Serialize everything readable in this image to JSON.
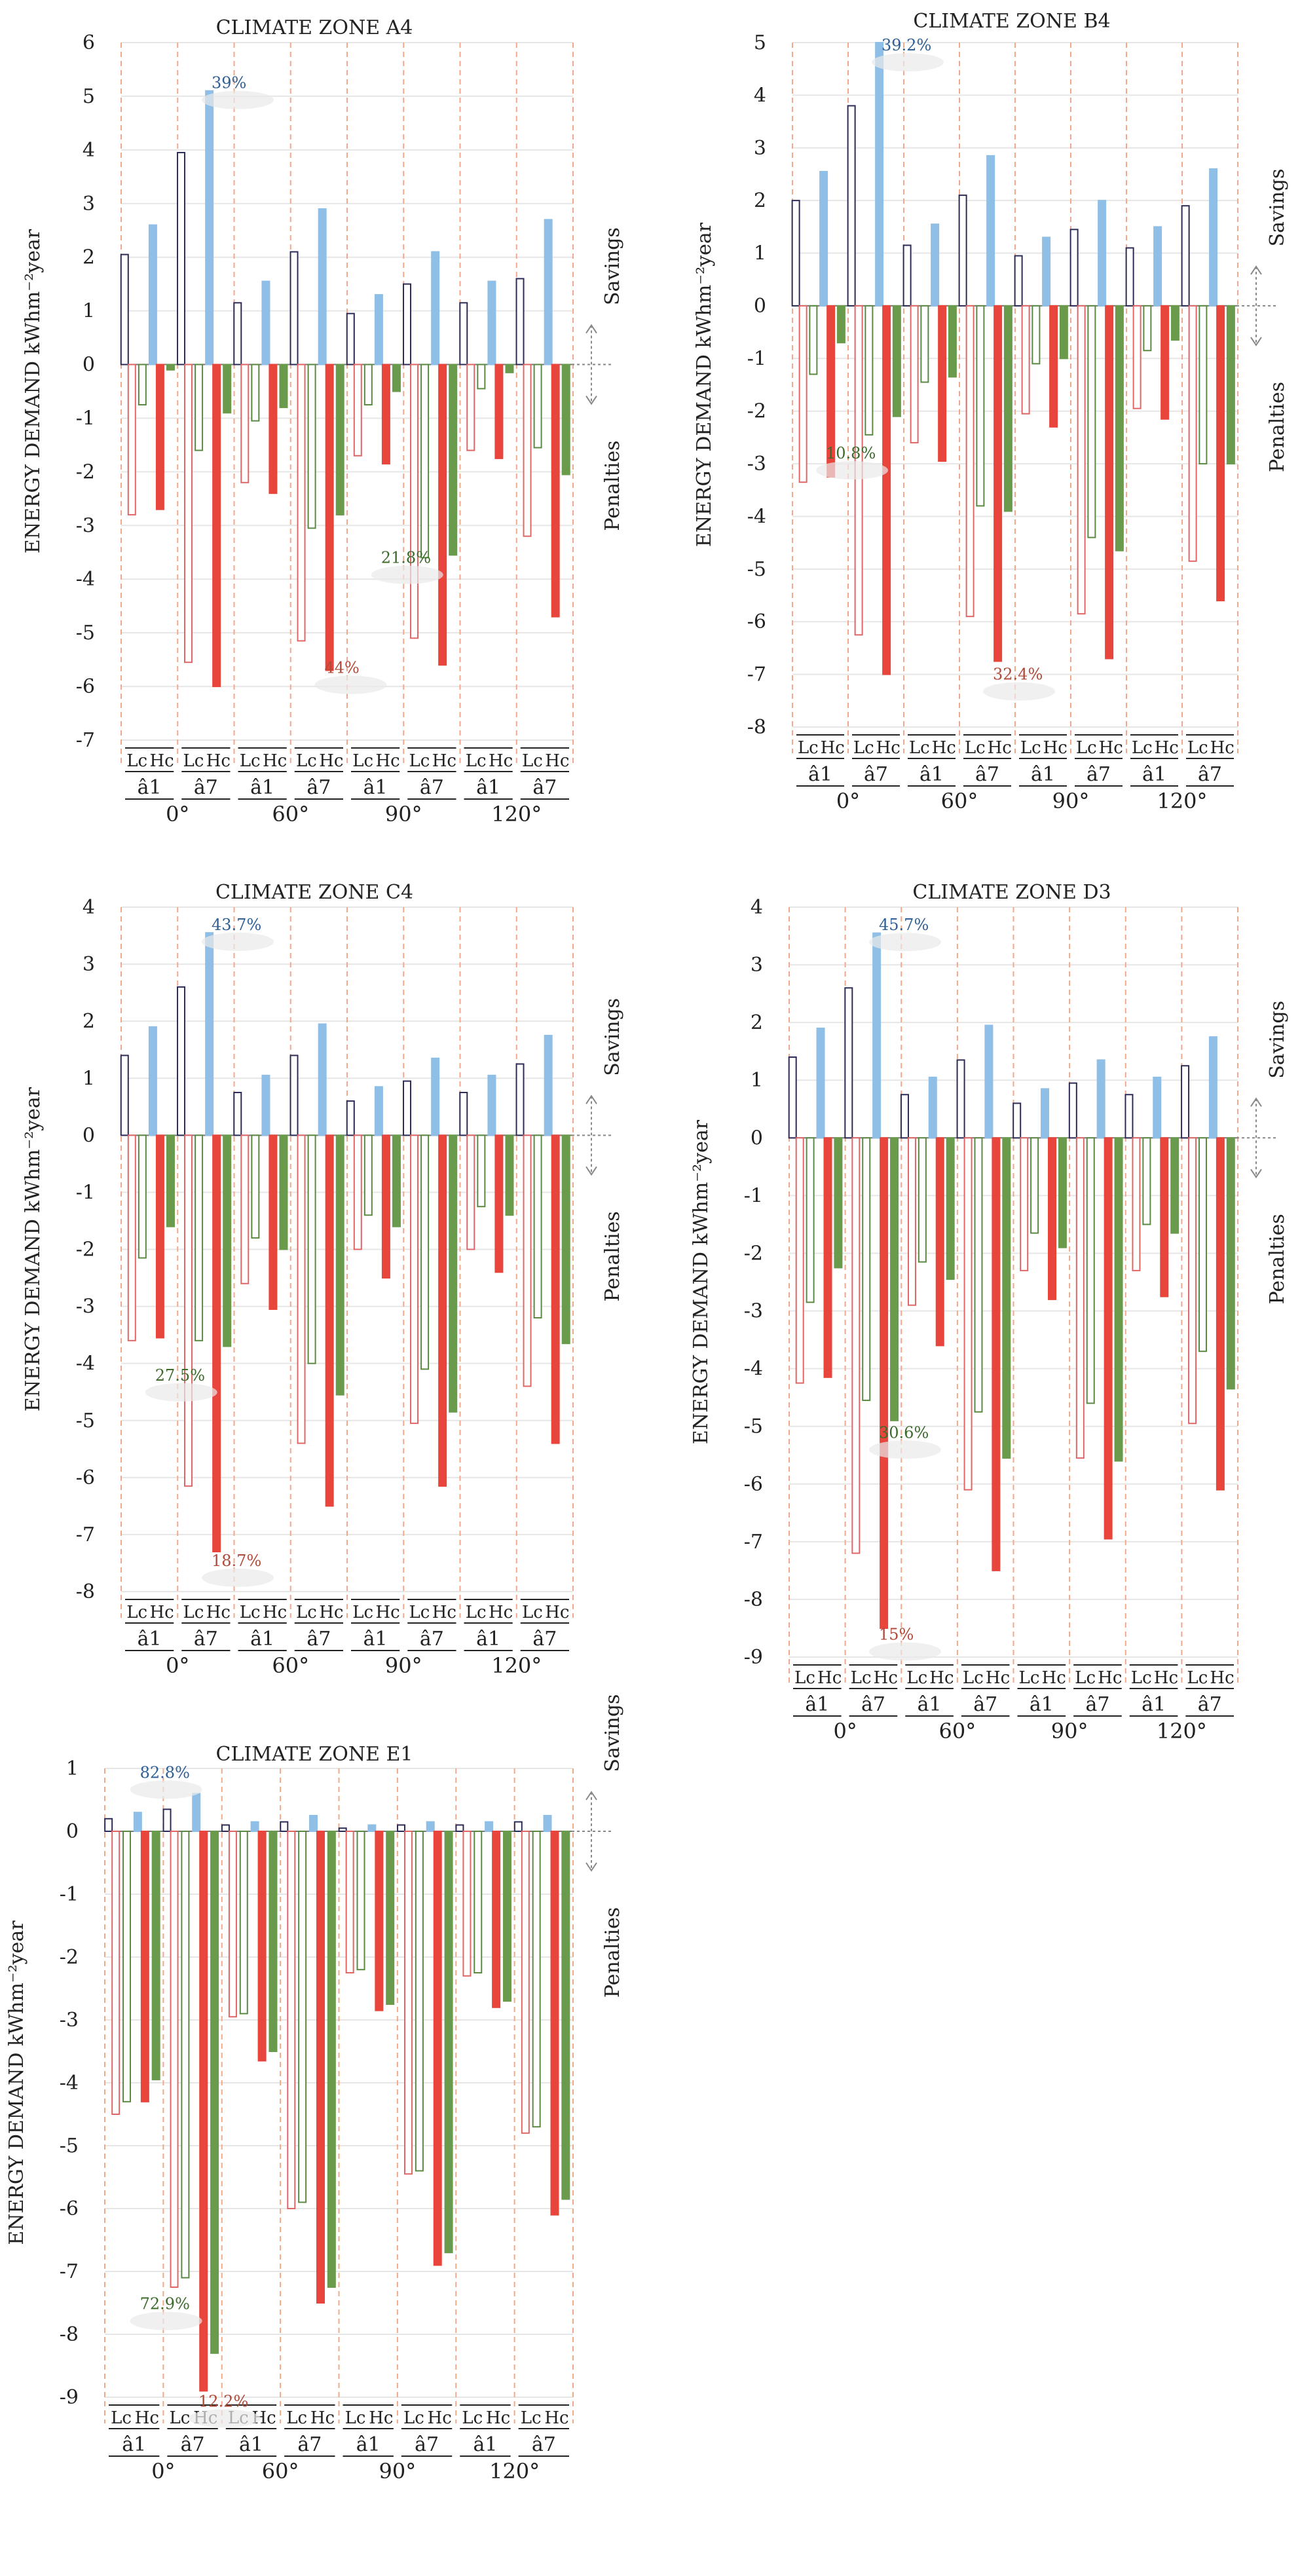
{
  "chart_data": [
    {
      "type": "bar",
      "title": "CLIMATE ZONE A4",
      "ylabel": "ENERGY DEMAND kWhm⁻²year",
      "ylim": [
        -7,
        6
      ],
      "yticks": [
        "6",
        "5",
        "4",
        "3",
        "2",
        "1",
        "0",
        "-1",
        "-2",
        "-3",
        "-4",
        "-5",
        "-6",
        "-7"
      ],
      "side_labels": {
        "top": "Savings",
        "bottom": "Penalties"
      },
      "x_levels": {
        "angles": [
          "0°",
          "60°",
          "90°",
          "120°"
        ],
        "sub": [
          "â1",
          "â7"
        ],
        "pair": [
          "Lc",
          "Hc"
        ]
      },
      "series": [
        {
          "name": "savings-1",
          "color": "#2b2b55",
          "filled": false,
          "values": [
            2.05,
            3.95,
            1.15,
            2.1,
            0.95,
            1.5,
            1.15,
            1.6
          ]
        },
        {
          "name": "savings-7",
          "color": "#8fbfe6",
          "filled": true,
          "values": [
            2.6,
            5.1,
            1.55,
            2.9,
            1.3,
            2.1,
            1.55,
            2.7
          ]
        },
        {
          "name": "penalty-1",
          "color": "#e06666",
          "filled": false,
          "values": [
            -2.8,
            -5.55,
            -2.2,
            -5.15,
            -1.7,
            -5.1,
            -1.6,
            -3.2
          ]
        },
        {
          "name": "penalty-1-green",
          "color": "#5a8a42",
          "filled": false,
          "values": [
            -0.75,
            -1.6,
            -1.05,
            -3.05,
            -0.75,
            -3.6,
            -0.45,
            -1.55
          ]
        },
        {
          "name": "penalty-7",
          "color": "#e8453c",
          "filled": true,
          "values": [
            -2.7,
            -6.0,
            -2.4,
            -5.7,
            -1.85,
            -5.6,
            -1.75,
            -4.7
          ]
        },
        {
          "name": "penalty-7-green",
          "color": "#6a9a4c",
          "filled": true,
          "values": [
            -0.1,
            -0.9,
            -0.8,
            -2.8,
            -0.5,
            -3.55,
            -0.15,
            -2.05
          ]
        }
      ],
      "annotations": [
        {
          "text": "39%",
          "color": "#2f5f94",
          "x_slot": 1,
          "y": 5.15
        },
        {
          "text": "21.8%",
          "color": "#3c6b2b",
          "x_slot": 4,
          "y": -3.7
        },
        {
          "text": "44%",
          "color": "#b04a3a",
          "x_slot": 3,
          "y": -5.75
        }
      ]
    },
    {
      "type": "bar",
      "title": "CLIMATE ZONE B4",
      "ylabel": "ENERGY DEMAND kWhm⁻²year",
      "ylim": [
        -8,
        5
      ],
      "yticks": [
        "5",
        "4",
        "3",
        "2",
        "1",
        "0",
        "-1",
        "-2",
        "-3",
        "-4",
        "-5",
        "-6",
        "-7",
        "-8"
      ],
      "side_labels": {
        "top": "Savings",
        "bottom": "Penalties"
      },
      "x_levels": {
        "angles": [
          "0°",
          "60°",
          "90°",
          "120°"
        ],
        "sub": [
          "â1",
          "â7"
        ],
        "pair": [
          "Lc",
          "Hc"
        ]
      },
      "series": [
        {
          "name": "savings-1",
          "color": "#2b2b55",
          "filled": false,
          "values": [
            2.0,
            3.8,
            1.15,
            2.1,
            0.95,
            1.45,
            1.1,
            1.9
          ]
        },
        {
          "name": "savings-7",
          "color": "#8fbfe6",
          "filled": true,
          "values": [
            2.55,
            5.0,
            1.55,
            2.85,
            1.3,
            2.0,
            1.5,
            2.6
          ]
        },
        {
          "name": "penalty-1",
          "color": "#e06666",
          "filled": false,
          "values": [
            -3.35,
            -6.25,
            -2.6,
            -5.9,
            -2.05,
            -5.85,
            -1.95,
            -4.85
          ]
        },
        {
          "name": "penalty-1-green",
          "color": "#5a8a42",
          "filled": false,
          "values": [
            -1.3,
            -2.45,
            -1.45,
            -3.8,
            -1.1,
            -4.4,
            -0.85,
            -3.0
          ]
        },
        {
          "name": "penalty-7",
          "color": "#e8453c",
          "filled": true,
          "values": [
            -3.25,
            -7.0,
            -2.95,
            -6.75,
            -2.3,
            -6.7,
            -2.15,
            -5.6
          ]
        },
        {
          "name": "penalty-7-green",
          "color": "#6a9a4c",
          "filled": true,
          "values": [
            -0.7,
            -2.1,
            -1.35,
            -3.9,
            -1.0,
            -4.65,
            -0.65,
            -3.0
          ]
        }
      ],
      "annotations": [
        {
          "text": "39.2%",
          "color": "#2f5f94",
          "x_slot": 1,
          "y": 4.85
        },
        {
          "text": "10.8%",
          "color": "#3c6b2b",
          "x_slot": 0,
          "y": -2.9
        },
        {
          "text": "32.4%",
          "color": "#b04a3a",
          "x_slot": 3,
          "y": -7.1
        }
      ]
    },
    {
      "type": "bar",
      "title": "CLIMATE ZONE C4",
      "ylabel": "ENERGY DEMAND kWhm⁻²year",
      "ylim": [
        -8,
        4
      ],
      "yticks": [
        "4",
        "3",
        "2",
        "1",
        "0",
        "-1",
        "-2",
        "-3",
        "-4",
        "-5",
        "-6",
        "-7",
        "-8"
      ],
      "side_labels": {
        "top": "Savings",
        "bottom": "Penalties"
      },
      "x_levels": {
        "angles": [
          "0°",
          "60°",
          "90°",
          "120°"
        ],
        "sub": [
          "â1",
          "â7"
        ],
        "pair": [
          "Lc",
          "Hc"
        ]
      },
      "series": [
        {
          "name": "savings-1",
          "color": "#2b2b55",
          "filled": false,
          "values": [
            1.4,
            2.6,
            0.75,
            1.4,
            0.6,
            0.95,
            0.75,
            1.25
          ]
        },
        {
          "name": "savings-7",
          "color": "#8fbfe6",
          "filled": true,
          "values": [
            1.9,
            3.55,
            1.05,
            1.95,
            0.85,
            1.35,
            1.05,
            1.75
          ]
        },
        {
          "name": "penalty-1",
          "color": "#e06666",
          "filled": false,
          "values": [
            -3.6,
            -6.15,
            -2.6,
            -5.4,
            -2.0,
            -5.05,
            -2.0,
            -4.4
          ]
        },
        {
          "name": "penalty-1-green",
          "color": "#5a8a42",
          "filled": false,
          "values": [
            -2.15,
            -3.6,
            -1.8,
            -4.0,
            -1.4,
            -4.1,
            -1.25,
            -3.2
          ]
        },
        {
          "name": "penalty-7",
          "color": "#e8453c",
          "filled": true,
          "values": [
            -3.55,
            -7.3,
            -3.05,
            -6.5,
            -2.5,
            -6.15,
            -2.4,
            -5.4
          ]
        },
        {
          "name": "penalty-7-green",
          "color": "#6a9a4c",
          "filled": true,
          "values": [
            -1.6,
            -3.7,
            -2.0,
            -4.55,
            -1.6,
            -4.85,
            -1.4,
            -3.65
          ]
        }
      ],
      "annotations": [
        {
          "text": "43.7%",
          "color": "#2f5f94",
          "x_slot": 1,
          "y": 3.6
        },
        {
          "text": "27.5%",
          "color": "#3c6b2b",
          "x_slot": 0,
          "y": -4.3
        },
        {
          "text": "18.7%",
          "color": "#b04a3a",
          "x_slot": 1,
          "y": -7.55
        }
      ]
    },
    {
      "type": "bar",
      "title": "CLIMATE ZONE D3",
      "ylabel": "ENERGY DEMAND kWhm⁻²year",
      "ylim": [
        -9,
        4
      ],
      "yticks": [
        "4",
        "3",
        "2",
        "1",
        "0",
        "-1",
        "-2",
        "-3",
        "-4",
        "-5",
        "-6",
        "-7",
        "-8",
        "-9"
      ],
      "side_labels": {
        "top": "Savings",
        "bottom": "Penalties"
      },
      "x_levels": {
        "angles": [
          "0°",
          "60°",
          "90°",
          "120°"
        ],
        "sub": [
          "â1",
          "â7"
        ],
        "pair": [
          "Lc",
          "Hc"
        ]
      },
      "series": [
        {
          "name": "savings-1",
          "color": "#2b2b55",
          "filled": false,
          "values": [
            1.4,
            2.6,
            0.75,
            1.35,
            0.6,
            0.95,
            0.75,
            1.25
          ]
        },
        {
          "name": "savings-7",
          "color": "#8fbfe6",
          "filled": true,
          "values": [
            1.9,
            3.55,
            1.05,
            1.95,
            0.85,
            1.35,
            1.05,
            1.75
          ]
        },
        {
          "name": "penalty-1",
          "color": "#e06666",
          "filled": false,
          "values": [
            -4.25,
            -7.2,
            -2.9,
            -6.1,
            -2.3,
            -5.55,
            -2.3,
            -4.95
          ]
        },
        {
          "name": "penalty-1-green",
          "color": "#5a8a42",
          "filled": false,
          "values": [
            -2.85,
            -4.55,
            -2.15,
            -4.75,
            -1.65,
            -4.6,
            -1.5,
            -3.7
          ]
        },
        {
          "name": "penalty-7",
          "color": "#e8453c",
          "filled": true,
          "values": [
            -4.15,
            -8.5,
            -3.6,
            -7.5,
            -2.8,
            -6.95,
            -2.75,
            -6.1
          ]
        },
        {
          "name": "penalty-7-green",
          "color": "#6a9a4c",
          "filled": true,
          "values": [
            -2.25,
            -4.9,
            -2.45,
            -5.55,
            -1.9,
            -5.6,
            -1.65,
            -4.35
          ]
        }
      ],
      "annotations": [
        {
          "text": "45.7%",
          "color": "#2f5f94",
          "x_slot": 1,
          "y": 3.6
        },
        {
          "text": "30.6%",
          "color": "#3c6b2b",
          "x_slot": 1,
          "y": -5.2
        },
        {
          "text": "15%",
          "color": "#b04a3a",
          "x_slot": 1,
          "y": -8.7
        }
      ]
    },
    {
      "type": "bar",
      "title": "CLIMATE ZONE E1",
      "ylabel": "ENERGY DEMAND kWhm⁻²year",
      "ylim": [
        -9,
        1
      ],
      "yticks": [
        "1",
        "0",
        "-1",
        "-2",
        "-3",
        "-4",
        "-5",
        "-6",
        "-7",
        "-8",
        "-9"
      ],
      "side_labels": {
        "top": "Savings",
        "bottom": "Penalties"
      },
      "x_levels": {
        "angles": [
          "0°",
          "60°",
          "90°",
          "120°"
        ],
        "sub": [
          "â1",
          "â7"
        ],
        "pair": [
          "Lc",
          "Hc"
        ]
      },
      "series": [
        {
          "name": "savings-1",
          "color": "#2b2b55",
          "filled": false,
          "values": [
            0.2,
            0.35,
            0.1,
            0.15,
            0.05,
            0.1,
            0.1,
            0.15
          ]
        },
        {
          "name": "savings-7",
          "color": "#8fbfe6",
          "filled": true,
          "values": [
            0.3,
            0.6,
            0.15,
            0.25,
            0.1,
            0.15,
            0.15,
            0.25
          ]
        },
        {
          "name": "penalty-1",
          "color": "#e06666",
          "filled": false,
          "values": [
            -4.5,
            -7.25,
            -2.95,
            -6.0,
            -2.25,
            -5.45,
            -2.3,
            -4.8
          ]
        },
        {
          "name": "penalty-1-green",
          "color": "#5a8a42",
          "filled": false,
          "values": [
            -4.3,
            -7.1,
            -2.9,
            -5.9,
            -2.2,
            -5.4,
            -2.25,
            -4.7
          ]
        },
        {
          "name": "penalty-7",
          "color": "#e8453c",
          "filled": true,
          "values": [
            -4.3,
            -8.9,
            -3.65,
            -7.5,
            -2.85,
            -6.9,
            -2.8,
            -6.1
          ]
        },
        {
          "name": "penalty-7-green",
          "color": "#6a9a4c",
          "filled": true,
          "values": [
            -3.95,
            -8.3,
            -3.5,
            -7.25,
            -2.75,
            -6.7,
            -2.7,
            -5.85
          ]
        }
      ],
      "annotations": [
        {
          "text": "82.8%",
          "color": "#2f5f94",
          "x_slot": 0,
          "y": 0.85
        },
        {
          "text": "72.9%",
          "color": "#3c6b2b",
          "x_slot": 0,
          "y": -7.6
        },
        {
          "text": "12.2%",
          "color": "#b04a3a",
          "x_slot": 1,
          "y": -9.15
        }
      ]
    }
  ]
}
